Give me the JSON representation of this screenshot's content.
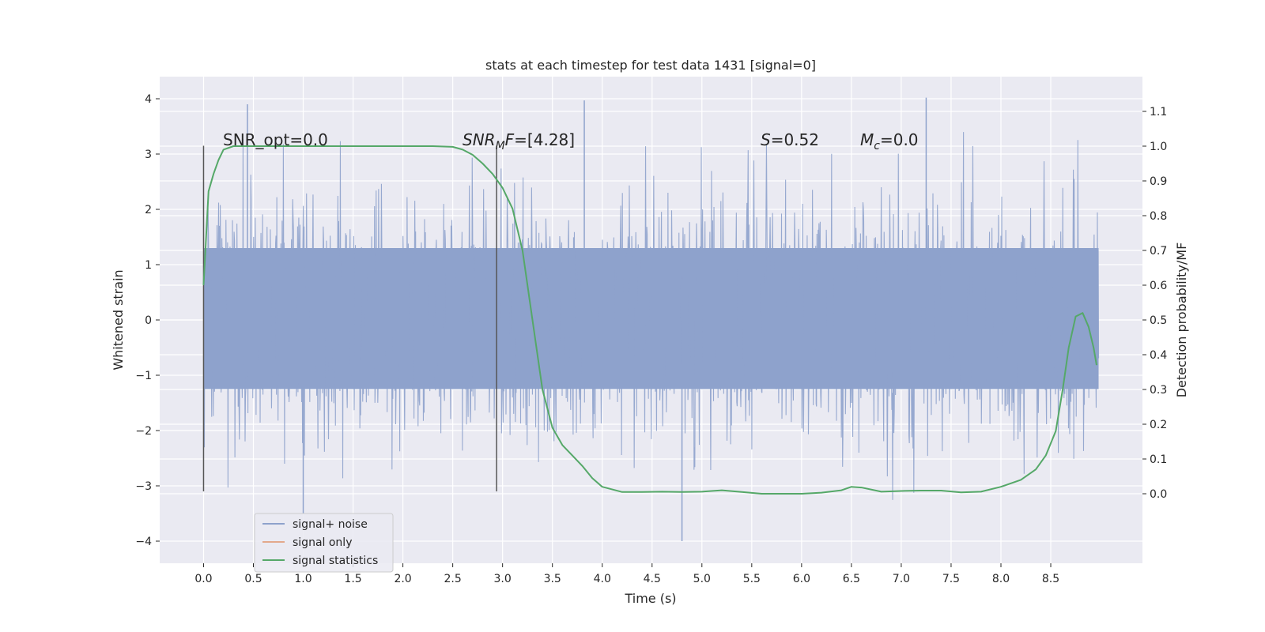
{
  "chart_data": {
    "type": "line",
    "title": "stats at each timestep for test data 1431 [signal=0]",
    "xlabel": "Time (s)",
    "ylabel_left": "Whitened strain",
    "ylabel_right": "Detection probability/MF",
    "xlim": [
      -0.44,
      9.42
    ],
    "ylim_left": [
      -4.4,
      4.4
    ],
    "ylim_right": [
      -0.2,
      1.2
    ],
    "x_ticks": [
      "0.0",
      "0.5",
      "1.0",
      "1.5",
      "2.0",
      "2.5",
      "3.0",
      "3.5",
      "4.0",
      "4.5",
      "5.0",
      "5.5",
      "6.0",
      "6.5",
      "7.0",
      "7.5",
      "8.0",
      "8.5"
    ],
    "y_ticks_left": [
      "4",
      "3",
      "2",
      "1",
      "0",
      "−1",
      "−2",
      "−3",
      "−4"
    ],
    "y_ticks_right": [
      "1.1",
      "1.0",
      "0.9",
      "0.8",
      "0.7",
      "0.6",
      "0.5",
      "0.4",
      "0.3",
      "0.2",
      "0.1",
      "0.0"
    ],
    "grid": true,
    "legend_position": "lower-left",
    "annotations": {
      "snr_opt": "SNR_opt=0.0",
      "snr_mf_sym": "SNR",
      "snr_mf_sub": "M",
      "snr_mf_rest": "F",
      "snr_mf_value": "=[4.28]",
      "s_sym": "S",
      "s_value": "=0.52",
      "mc_sym": "M",
      "mc_sub": "c",
      "mc_value": "=0.0"
    },
    "vlines_x": [
      0.0,
      2.94
    ],
    "vline_range": [
      -3.1,
      3.15
    ],
    "series": [
      {
        "name": "signal+ noise",
        "color": "#8ea2cc",
        "x_range": [
          0.0,
          8.98
        ],
        "core_range": [
          -1.25,
          1.3
        ],
        "peak_max": 4.02,
        "peak_min": -4.0
      },
      {
        "name": "signal only",
        "color": "#e3a98c",
        "x": [],
        "y": []
      },
      {
        "name": "signal statistics",
        "color": "#55a868",
        "x": [
          0.0,
          0.05,
          0.1,
          0.15,
          0.2,
          0.3,
          0.5,
          1.0,
          1.5,
          2.0,
          2.3,
          2.5,
          2.6,
          2.7,
          2.8,
          2.9,
          3.0,
          3.1,
          3.2,
          3.3,
          3.4,
          3.5,
          3.6,
          3.7,
          3.8,
          3.9,
          4.0,
          4.2,
          4.4,
          4.6,
          4.8,
          5.0,
          5.2,
          5.4,
          5.6,
          5.8,
          6.0,
          6.2,
          6.4,
          6.5,
          6.6,
          6.8,
          7.0,
          7.2,
          7.4,
          7.6,
          7.8,
          8.0,
          8.2,
          8.35,
          8.45,
          8.55,
          8.62,
          8.68,
          8.75,
          8.82,
          8.88,
          8.93,
          8.96
        ],
        "y": [
          0.6,
          0.87,
          0.92,
          0.96,
          0.99,
          1.0,
          1.0,
          1.0,
          1.0,
          1.0,
          1.0,
          0.998,
          0.99,
          0.975,
          0.95,
          0.92,
          0.88,
          0.82,
          0.7,
          0.5,
          0.3,
          0.19,
          0.14,
          0.11,
          0.08,
          0.045,
          0.02,
          0.005,
          0.005,
          0.006,
          0.005,
          0.006,
          0.01,
          0.005,
          0.0,
          0.0,
          0.0,
          0.003,
          0.01,
          0.02,
          0.018,
          0.006,
          0.008,
          0.009,
          0.009,
          0.004,
          0.006,
          0.02,
          0.04,
          0.07,
          0.11,
          0.18,
          0.3,
          0.42,
          0.51,
          0.52,
          0.48,
          0.42,
          0.37
        ]
      }
    ]
  }
}
